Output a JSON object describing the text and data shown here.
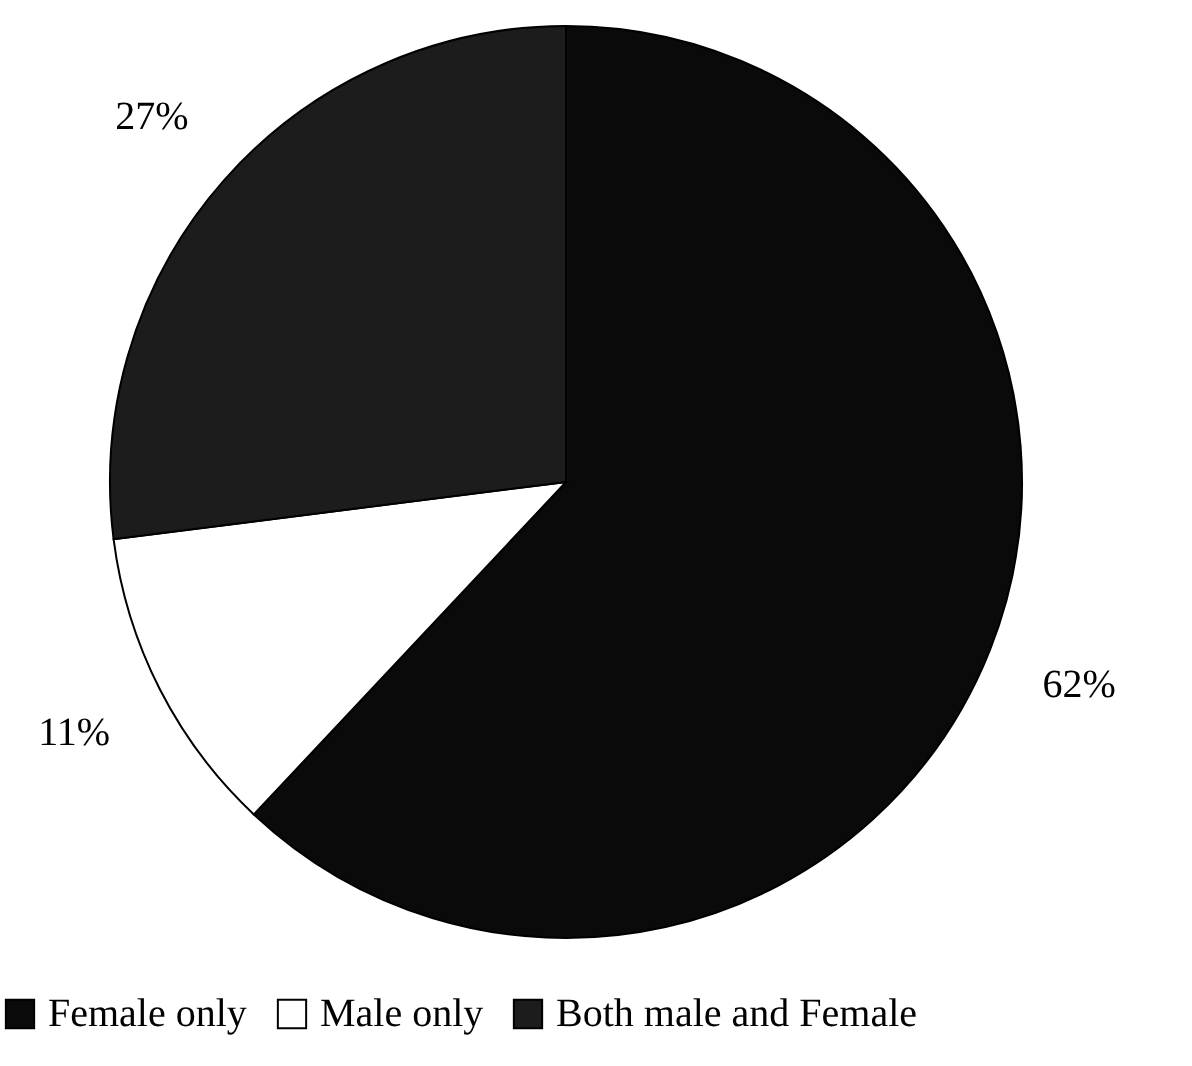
{
  "chart_data": {
    "type": "pie",
    "categories": [
      "Female only",
      "Male only",
      "Both male and Female"
    ],
    "values": [
      62,
      11,
      27
    ],
    "colors": [
      "#0a0a0a",
      "#ffffff",
      "#1c1c1c"
    ],
    "value_labels": [
      "62%",
      "11%",
      "27%"
    ],
    "legend": "bottom"
  }
}
